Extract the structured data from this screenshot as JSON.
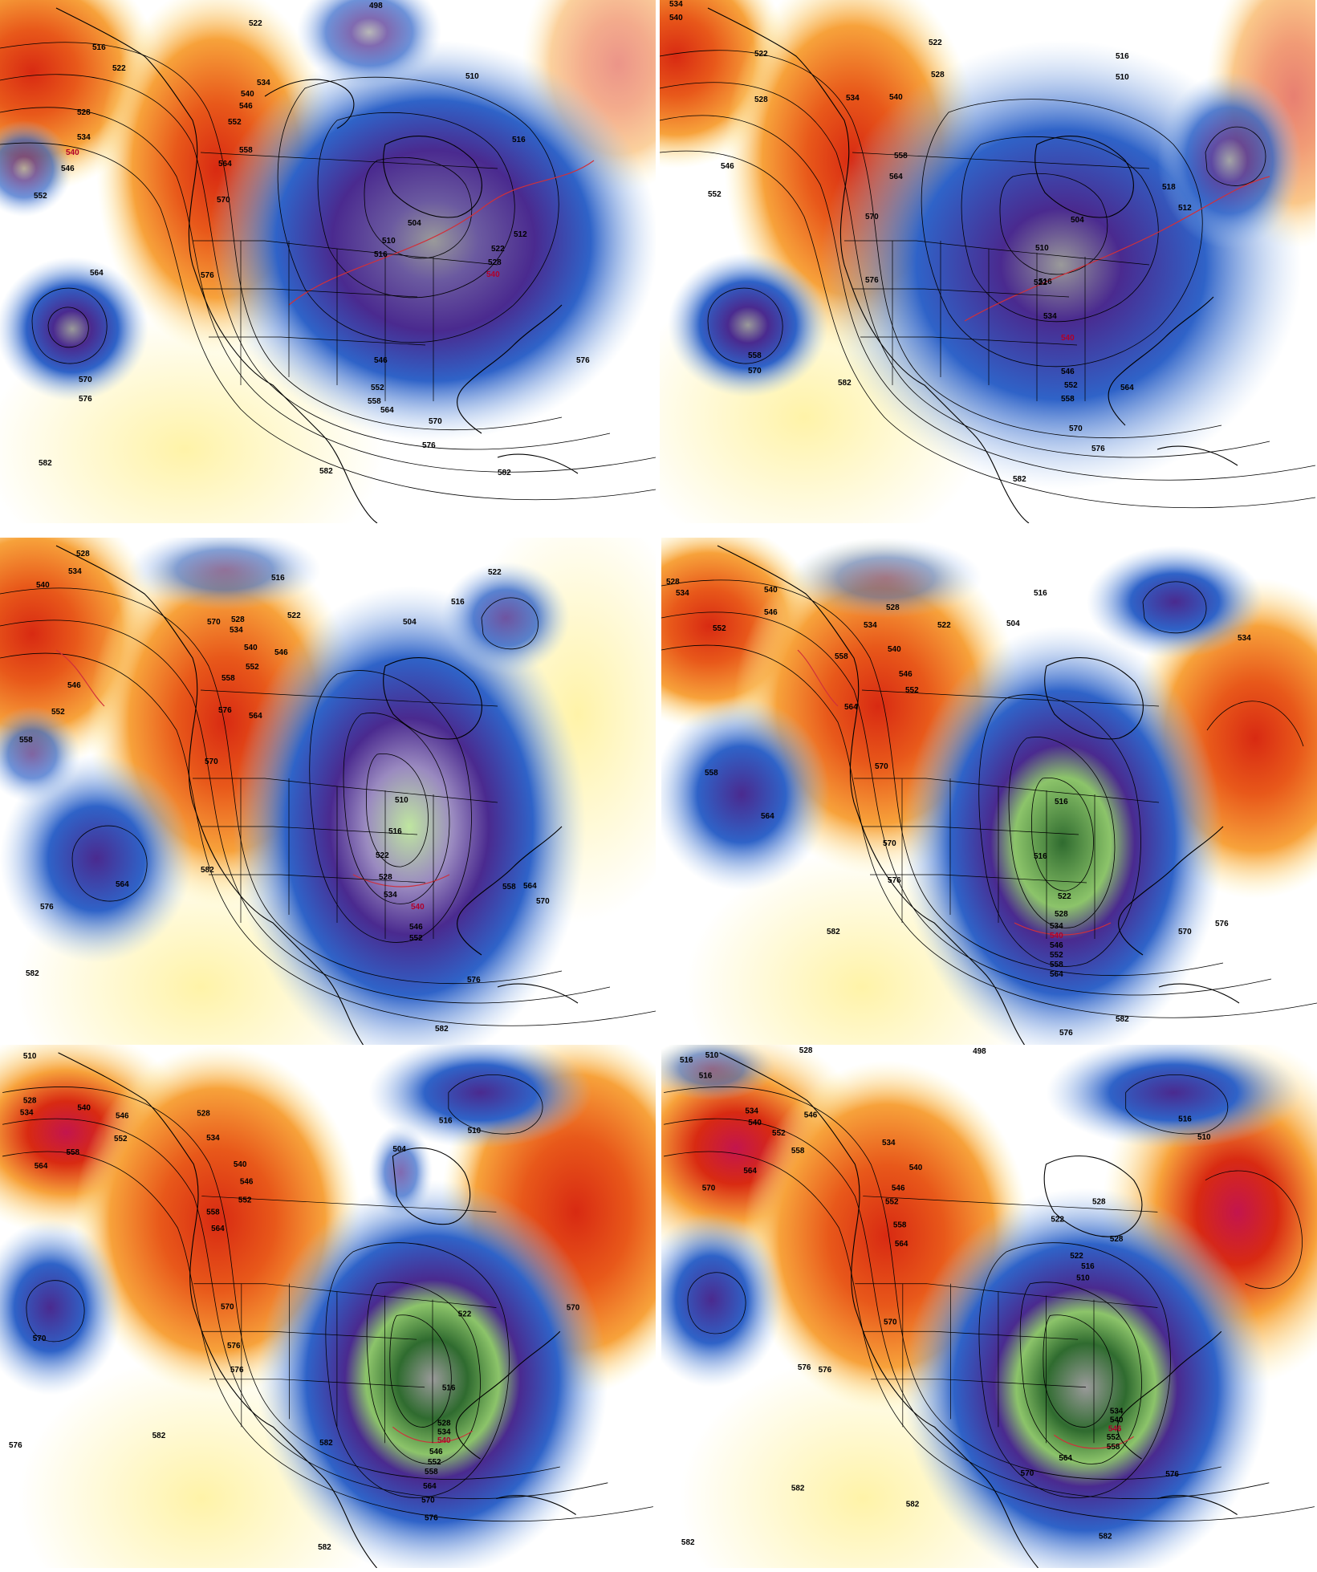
{
  "colors": {
    "very_low": "#9a9a9a",
    "low_green": "#2f6b2f",
    "low_lightgreen": "#bfe6a0",
    "low_purple": "#4a2a8f",
    "low_blue": "#2f63c8",
    "low_lightblue": "#a7c6ef",
    "neutral": "#ffffff",
    "high_lightyellow": "#fff3a8",
    "high_orange": "#f7a23b",
    "high_red": "#d82a12",
    "very_high_magenta": "#c3154d",
    "contour": "#000000",
    "contour_highlight": "#d0303a",
    "coastline": "#000000"
  },
  "panels": [
    {
      "id": "panel-1",
      "labels": [
        "498",
        "522",
        "516",
        "522",
        "528",
        "534",
        "540",
        "546",
        "552",
        "510",
        "534",
        "540",
        "546",
        "552",
        "558",
        "564",
        "570",
        "576",
        "564",
        "570",
        "576",
        "582",
        "582",
        "582",
        "516",
        "504",
        "510",
        "516",
        "522",
        "528",
        "540",
        "512",
        "546",
        "552",
        "558",
        "564",
        "570",
        "576",
        "576"
      ]
    },
    {
      "id": "panel-2",
      "labels": [
        "534",
        "540",
        "522",
        "528",
        "522",
        "528",
        "534",
        "540",
        "546",
        "552",
        "558",
        "564",
        "570",
        "576",
        "510",
        "516",
        "518",
        "512",
        "504",
        "510",
        "516",
        "522",
        "534",
        "540",
        "546",
        "552",
        "558",
        "564",
        "570",
        "576",
        "558",
        "564",
        "570",
        "582",
        "582"
      ]
    },
    {
      "id": "panel-3",
      "labels": [
        "528",
        "534",
        "540",
        "546",
        "552",
        "558",
        "564",
        "570",
        "576",
        "582",
        "582",
        "516",
        "522",
        "528",
        "534",
        "540",
        "546",
        "552",
        "558",
        "564",
        "570",
        "522",
        "504",
        "516",
        "510",
        "516",
        "522",
        "528",
        "534",
        "540",
        "546",
        "552",
        "558",
        "564",
        "570",
        "576",
        "582",
        "576"
      ]
    },
    {
      "id": "panel-4",
      "labels": [
        "528",
        "534",
        "540",
        "546",
        "552",
        "558",
        "564",
        "570",
        "576",
        "582",
        "528",
        "534",
        "540",
        "546",
        "552",
        "558",
        "564",
        "570",
        "576",
        "582",
        "516",
        "522",
        "504",
        "516",
        "522",
        "528",
        "534",
        "540",
        "546",
        "552",
        "558",
        "564",
        "570",
        "576",
        "516",
        "534",
        "582"
      ]
    },
    {
      "id": "panel-5",
      "labels": [
        "510",
        "528",
        "534",
        "540",
        "546",
        "552",
        "558",
        "564",
        "570",
        "576",
        "582",
        "528",
        "534",
        "540",
        "546",
        "552",
        "558",
        "564",
        "570",
        "576",
        "582",
        "516",
        "510",
        "504",
        "516",
        "522",
        "528",
        "534",
        "540",
        "546",
        "552",
        "558",
        "564",
        "570",
        "576",
        "582",
        "570",
        "576"
      ]
    },
    {
      "id": "panel-6",
      "labels": [
        "510",
        "516",
        "528",
        "534",
        "540",
        "546",
        "552",
        "558",
        "564",
        "570",
        "576",
        "582",
        "498",
        "534",
        "540",
        "546",
        "552",
        "558",
        "564",
        "570",
        "576",
        "582",
        "510",
        "516",
        "522",
        "528",
        "534",
        "540",
        "546",
        "552",
        "558",
        "564",
        "570",
        "576",
        "516",
        "510",
        "522",
        "528",
        "516",
        "582",
        "582"
      ]
    }
  ]
}
